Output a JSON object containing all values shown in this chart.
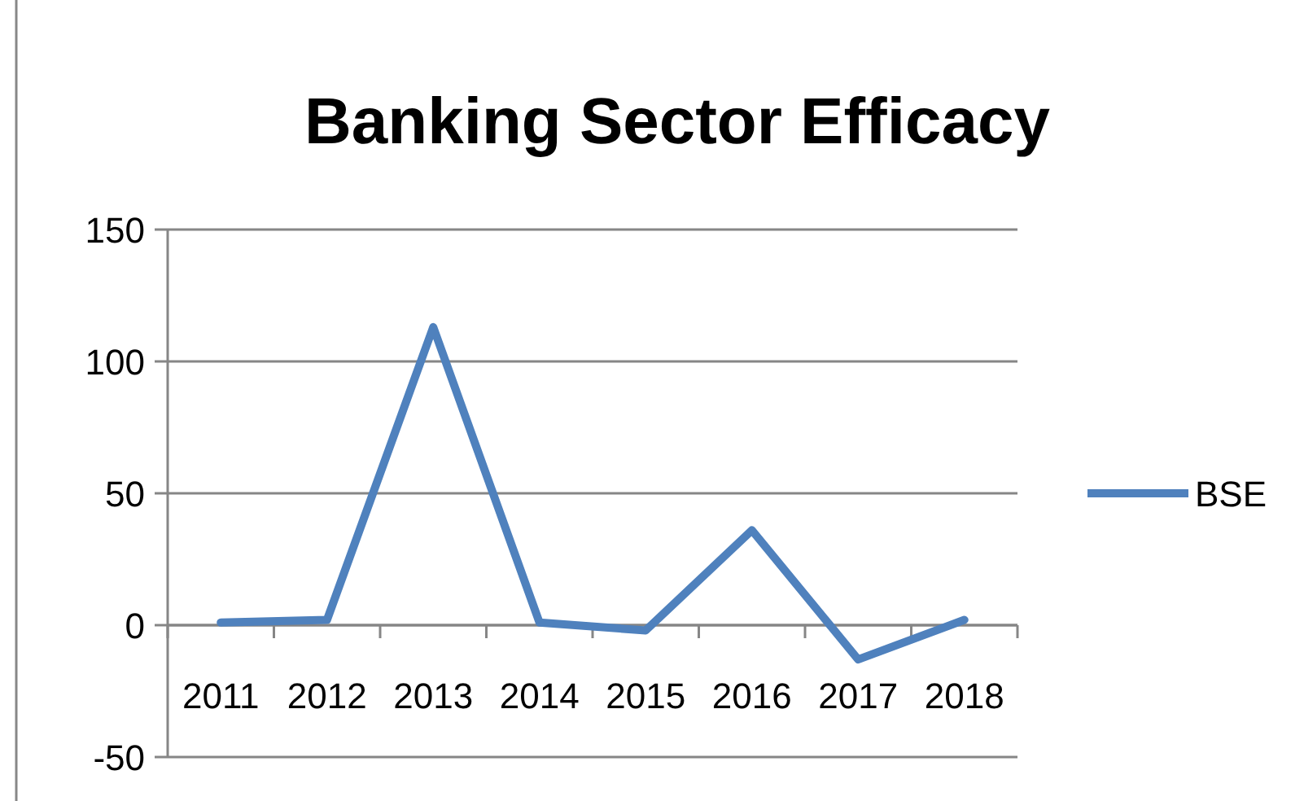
{
  "chart_data": {
    "type": "line",
    "title": "Banking Sector Efficacy",
    "categories": [
      "2011",
      "2012",
      "2013",
      "2014",
      "2015",
      "2016",
      "2017",
      "2018"
    ],
    "series": [
      {
        "name": "BSE",
        "color": "#4f81bd",
        "values": [
          1,
          2,
          113,
          1,
          -2,
          36,
          -13,
          2
        ]
      }
    ],
    "ylim": [
      -50,
      150
    ],
    "yticks": [
      -50,
      0,
      50,
      100,
      150
    ],
    "grid": "y",
    "legend": "right",
    "marker": "none",
    "line_style": "solid"
  }
}
